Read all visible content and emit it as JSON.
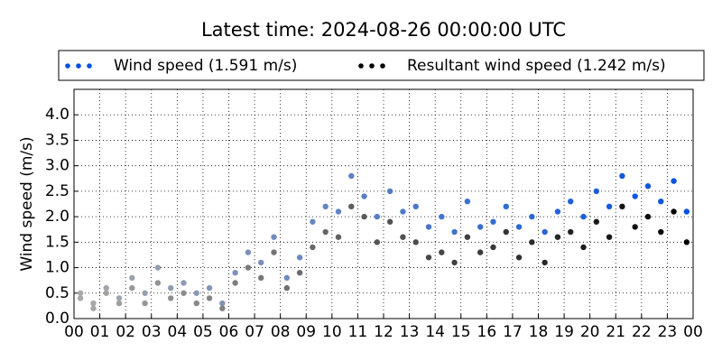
{
  "chart_data": {
    "type": "scatter",
    "title": "Latest time: 2024-08-26 00:00:00 UTC",
    "y_label": "Wind speed (m/s)",
    "xlim": [
      0,
      24
    ],
    "ylim": [
      0,
      4.5
    ],
    "xticks": [
      {
        "value": 0,
        "label": "00"
      },
      {
        "value": 1,
        "label": "01"
      },
      {
        "value": 2,
        "label": "02"
      },
      {
        "value": 3,
        "label": "03"
      },
      {
        "value": 4,
        "label": "04"
      },
      {
        "value": 5,
        "label": "05"
      },
      {
        "value": 6,
        "label": "06"
      },
      {
        "value": 7,
        "label": "07"
      },
      {
        "value": 8,
        "label": "08"
      },
      {
        "value": 9,
        "label": "09"
      },
      {
        "value": 10,
        "label": "10"
      },
      {
        "value": 11,
        "label": "11"
      },
      {
        "value": 12,
        "label": "12"
      },
      {
        "value": 13,
        "label": "13"
      },
      {
        "value": 14,
        "label": "14"
      },
      {
        "value": 15,
        "label": "15"
      },
      {
        "value": 16,
        "label": "16"
      },
      {
        "value": 17,
        "label": "17"
      },
      {
        "value": 18,
        "label": "18"
      },
      {
        "value": 19,
        "label": "19"
      },
      {
        "value": 20,
        "label": "20"
      },
      {
        "value": 21,
        "label": "21"
      },
      {
        "value": 22,
        "label": "22"
      },
      {
        "value": 23,
        "label": "23"
      },
      {
        "value": 24,
        "label": "00"
      }
    ],
    "yticks": [
      {
        "value": 0,
        "label": "0.0"
      },
      {
        "value": 0.5,
        "label": "0.5"
      },
      {
        "value": 1,
        "label": "1.0"
      },
      {
        "value": 1.5,
        "label": "1.5"
      },
      {
        "value": 2,
        "label": "2.0"
      },
      {
        "value": 2.5,
        "label": "2.5"
      },
      {
        "value": 3,
        "label": "3.0"
      },
      {
        "value": 3.5,
        "label": "3.5"
      },
      {
        "value": 4,
        "label": "4.0"
      }
    ],
    "grid": true,
    "fade_color": "#aaaaaa",
    "x": [
      0.25,
      0.75,
      1.25,
      1.75,
      2.25,
      2.75,
      3.25,
      3.75,
      4.25,
      4.75,
      5.25,
      5.75,
      6.25,
      6.75,
      7.25,
      7.75,
      8.25,
      8.75,
      9.25,
      9.75,
      10.25,
      10.75,
      11.25,
      11.75,
      12.25,
      12.75,
      13.25,
      13.75,
      14.25,
      14.75,
      15.25,
      15.75,
      16.25,
      16.75,
      17.25,
      17.75,
      18.25,
      18.75,
      19.25,
      19.75,
      20.25,
      20.75,
      21.25,
      21.75,
      22.25,
      22.75,
      23.25,
      23.75
    ],
    "series": [
      {
        "name": "Wind speed (1.591 m/s)",
        "color": "#0050e0",
        "values": [
          0.5,
          0.3,
          0.6,
          0.4,
          0.8,
          0.5,
          1.0,
          0.6,
          0.7,
          0.5,
          0.6,
          0.3,
          0.9,
          1.3,
          1.1,
          1.6,
          0.8,
          1.2,
          1.9,
          2.2,
          2.1,
          2.8,
          2.4,
          2.0,
          2.5,
          2.1,
          2.2,
          1.8,
          2.0,
          1.7,
          2.3,
          1.8,
          1.9,
          2.2,
          1.8,
          2.0,
          1.7,
          2.1,
          2.3,
          2.0,
          2.5,
          2.2,
          2.8,
          2.4,
          2.6,
          2.3,
          2.7,
          2.1
        ]
      },
      {
        "name": "Resultant wind speed (1.242 m/s)",
        "color": "#000000",
        "values": [
          0.4,
          0.2,
          0.5,
          0.3,
          0.6,
          0.3,
          0.7,
          0.4,
          0.5,
          0.3,
          0.4,
          0.2,
          0.7,
          1.0,
          0.8,
          1.3,
          0.6,
          0.9,
          1.4,
          1.7,
          1.6,
          2.2,
          2.0,
          1.5,
          1.9,
          1.6,
          1.5,
          1.2,
          1.3,
          1.1,
          1.6,
          1.3,
          1.4,
          1.7,
          1.2,
          1.5,
          1.1,
          1.6,
          1.7,
          1.4,
          1.9,
          1.6,
          2.2,
          1.8,
          2.0,
          1.7,
          2.1,
          1.5
        ]
      }
    ]
  }
}
